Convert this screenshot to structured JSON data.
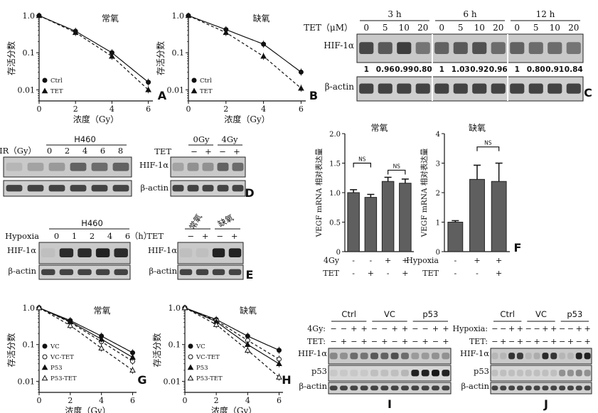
{
  "panel_letters": [
    "A",
    "B",
    "C",
    "D",
    "E",
    "F",
    "G",
    "H",
    "I",
    "J"
  ],
  "survival": {
    "ylabel": "存活分数",
    "xlabel": "浓度（Gy）",
    "xticks": [
      "0",
      "2",
      "4",
      "6"
    ],
    "yticks": [
      "1.0",
      "0.1",
      "0.01"
    ],
    "A": {
      "title": "常氧",
      "legend": [
        "Ctrl",
        "TET"
      ]
    },
    "B": {
      "title": "缺氧",
      "legend": [
        "Ctrl",
        "TET"
      ]
    },
    "G": {
      "title": "常氧",
      "legend": [
        "VC",
        "VC-TET",
        "P53",
        "P53-TET"
      ]
    },
    "H": {
      "title": "缺氧",
      "legend": [
        "VC",
        "VC-TET",
        "P53",
        "P53-TET"
      ]
    }
  },
  "chart_data": [
    {
      "type": "scatter",
      "panel": "A",
      "title": "常氧",
      "xlabel": "浓度（Gy）",
      "ylabel": "存活分数",
      "x": [
        0,
        2,
        4,
        6
      ],
      "yscale": "log",
      "ylim": [
        0.005,
        1.0
      ],
      "series": [
        {
          "name": "Ctrl",
          "values": [
            1.0,
            0.38,
            0.1,
            0.016
          ]
        },
        {
          "name": "TET",
          "values": [
            1.0,
            0.35,
            0.08,
            0.01
          ]
        }
      ]
    },
    {
      "type": "scatter",
      "panel": "B",
      "title": "缺氧",
      "xlabel": "浓度（Gy）",
      "ylabel": "存活分数",
      "x": [
        0,
        2,
        4,
        6
      ],
      "yscale": "log",
      "ylim": [
        0.005,
        1.0
      ],
      "series": [
        {
          "name": "Ctrl",
          "values": [
            1.0,
            0.42,
            0.17,
            0.03
          ]
        },
        {
          "name": "TET",
          "values": [
            1.0,
            0.35,
            0.08,
            0.011
          ]
        }
      ]
    },
    {
      "type": "bar",
      "panel": "F-left",
      "title": "常氧",
      "ylabel": "VEGF mRNA 相对表达量",
      "ylim": [
        0,
        2.0
      ],
      "yticks": [
        "0",
        "0.5",
        "1.0",
        "1.5",
        "2.0"
      ],
      "rows": [
        {
          "label": "4Gy",
          "values": [
            "-",
            "-",
            "+",
            "+"
          ]
        },
        {
          "label": "TET",
          "values": [
            "-",
            "+",
            "-",
            "+"
          ]
        }
      ],
      "values": [
        1.0,
        0.92,
        1.19,
        1.16
      ],
      "errors": [
        0.05,
        0.05,
        0.07,
        0.07
      ],
      "ns": [
        "NS",
        "NS"
      ]
    },
    {
      "type": "bar",
      "panel": "F-right",
      "title": "缺氧",
      "ylabel": "VEGF mRNA 相对表达量",
      "ylim": [
        0,
        4
      ],
      "yticks": [
        "0",
        "1",
        "2",
        "3",
        "4"
      ],
      "rows": [
        {
          "label": "Hypoxia",
          "values": [
            "-",
            "+",
            "+"
          ]
        },
        {
          "label": "TET",
          "values": [
            "-",
            "-",
            "+"
          ]
        }
      ],
      "values": [
        1.0,
        2.45,
        2.38
      ],
      "errors": [
        0.05,
        0.48,
        0.62
      ],
      "ns": [
        "NS"
      ]
    },
    {
      "type": "scatter",
      "panel": "G",
      "title": "常氧",
      "xlabel": "浓度（Gy）",
      "ylabel": "存活分数",
      "x": [
        0,
        2,
        4,
        6
      ],
      "yscale": "log",
      "ylim": [
        0.005,
        1.0
      ],
      "series": [
        {
          "name": "VC",
          "values": [
            1.0,
            0.45,
            0.17,
            0.06
          ]
        },
        {
          "name": "VC-TET",
          "values": [
            1.0,
            0.4,
            0.12,
            0.035
          ]
        },
        {
          "name": "P53",
          "values": [
            1.0,
            0.42,
            0.14,
            0.045
          ]
        },
        {
          "name": "P53-TET",
          "values": [
            1.0,
            0.33,
            0.08,
            0.02
          ]
        }
      ]
    },
    {
      "type": "scatter",
      "panel": "H",
      "title": "缺氧",
      "xlabel": "浓度（Gy）",
      "ylabel": "存活分数",
      "x": [
        0,
        2,
        4,
        6
      ],
      "yscale": "log",
      "ylim": [
        0.005,
        1.0
      ],
      "series": [
        {
          "name": "VC",
          "values": [
            1.0,
            0.48,
            0.17,
            0.07
          ]
        },
        {
          "name": "VC-TET",
          "values": [
            1.0,
            0.45,
            0.13,
            0.04
          ]
        },
        {
          "name": "P53",
          "values": [
            1.0,
            0.42,
            0.1,
            0.03
          ]
        },
        {
          "name": "P53-TET",
          "values": [
            1.0,
            0.35,
            0.07,
            0.013
          ]
        }
      ]
    }
  ],
  "blots": {
    "C": {
      "time_labels": [
        "3 h",
        "6 h",
        "12 h"
      ],
      "tet_label": "TET（μM）",
      "doses": [
        "0",
        "5",
        "10",
        "20",
        "0",
        "5",
        "10",
        "20",
        "0",
        "5",
        "10",
        "20"
      ],
      "hif_label": "HIF-1α",
      "actin_label": "β-actin",
      "ratios": [
        "1",
        "0.96",
        "0.99",
        "0.80",
        "1",
        "1.03",
        "0.92",
        "0.96",
        "1",
        "0.80",
        "0.91",
        "0.84"
      ],
      "hif_levels": [
        0.7,
        0.6,
        0.75,
        0.45,
        0.55,
        0.6,
        0.65,
        0.5,
        0.55,
        0.5,
        0.5,
        0.45
      ]
    },
    "D1": {
      "group": "H460",
      "row_label": "IR（Gy）",
      "lanes": [
        "0",
        "2",
        "4",
        "6",
        "8"
      ],
      "hif_label": "HIF-1α",
      "actin_label": "β-actin",
      "hif_levels": [
        0.2,
        0.25,
        0.55,
        0.5,
        0.55
      ]
    },
    "D2": {
      "groups": [
        "0Gy",
        "4Gy"
      ],
      "row_label": "TET",
      "lanes": [
        "−",
        "+",
        "−",
        "+"
      ],
      "hif_label": "HIF-1α",
      "actin_label": "β-actin",
      "hif_levels": [
        0.3,
        0.3,
        0.55,
        0.5
      ]
    },
    "E1": {
      "group": "H460",
      "row_label": "Hypoxia",
      "lanes": [
        "0",
        "1",
        "2",
        "4",
        "6"
      ],
      "unit": "（h）",
      "hif_label": "HIF-1α",
      "actin_label": "β-actin",
      "hif_levels": [
        0.05,
        0.85,
        0.85,
        0.9,
        0.85
      ]
    },
    "E2": {
      "groups": [
        "常氧",
        "缺氧"
      ],
      "row_label": "TET",
      "lanes": [
        "−",
        "+",
        "−",
        "+"
      ],
      "hif_label": "HIF-1α",
      "actin_label": "β-actin",
      "hif_levels": [
        0.05,
        0.05,
        0.9,
        0.9
      ]
    },
    "I": {
      "groups": [
        "Ctrl",
        "VC",
        "p53"
      ],
      "rows": [
        {
          "label": "4Gy:",
          "values": [
            "−",
            "−",
            "+",
            "+",
            "−",
            "−",
            "+",
            "+",
            "−",
            "−",
            "+",
            "+"
          ]
        },
        {
          "label": "TET:",
          "values": [
            "−",
            "+",
            "−",
            "+",
            "−",
            "+",
            "−",
            "+",
            "−",
            "+",
            "−",
            "+"
          ]
        }
      ],
      "blot_labels": [
        "HIF-1α",
        "p53",
        "β-actin"
      ],
      "hif_levels": [
        0.35,
        0.3,
        0.5,
        0.45,
        0.6,
        0.55,
        0.65,
        0.5,
        0.25,
        0.25,
        0.3,
        0.3
      ],
      "p53_levels": [
        0,
        0,
        0,
        0,
        0.05,
        0.05,
        0.05,
        0.1,
        0.9,
        0.9,
        0.95,
        0.9
      ]
    },
    "J": {
      "groups": [
        "Ctrl",
        "VC",
        "p53"
      ],
      "rows": [
        {
          "label": "Hypoxia:",
          "values": [
            "−",
            "−",
            "+",
            "+",
            "−",
            "−",
            "+",
            "+",
            "−",
            "−",
            "+",
            "+"
          ]
        },
        {
          "label": "TET:",
          "values": [
            "−",
            "+",
            "−",
            "+",
            "−",
            "+",
            "−",
            "+",
            "−",
            "+",
            "−",
            "+"
          ]
        }
      ],
      "blot_labels": [
        "HIF-1α",
        "p53",
        "β-actin"
      ],
      "hif_levels": [
        0.1,
        0.1,
        0.8,
        0.75,
        0.1,
        0.15,
        0.85,
        0.8,
        0.1,
        0.1,
        0.9,
        0.9
      ],
      "p53_levels": [
        0.05,
        0.05,
        0.05,
        0.05,
        0.05,
        0.05,
        0.05,
        0.05,
        0.3,
        0.3,
        0.35,
        0.3
      ]
    }
  }
}
